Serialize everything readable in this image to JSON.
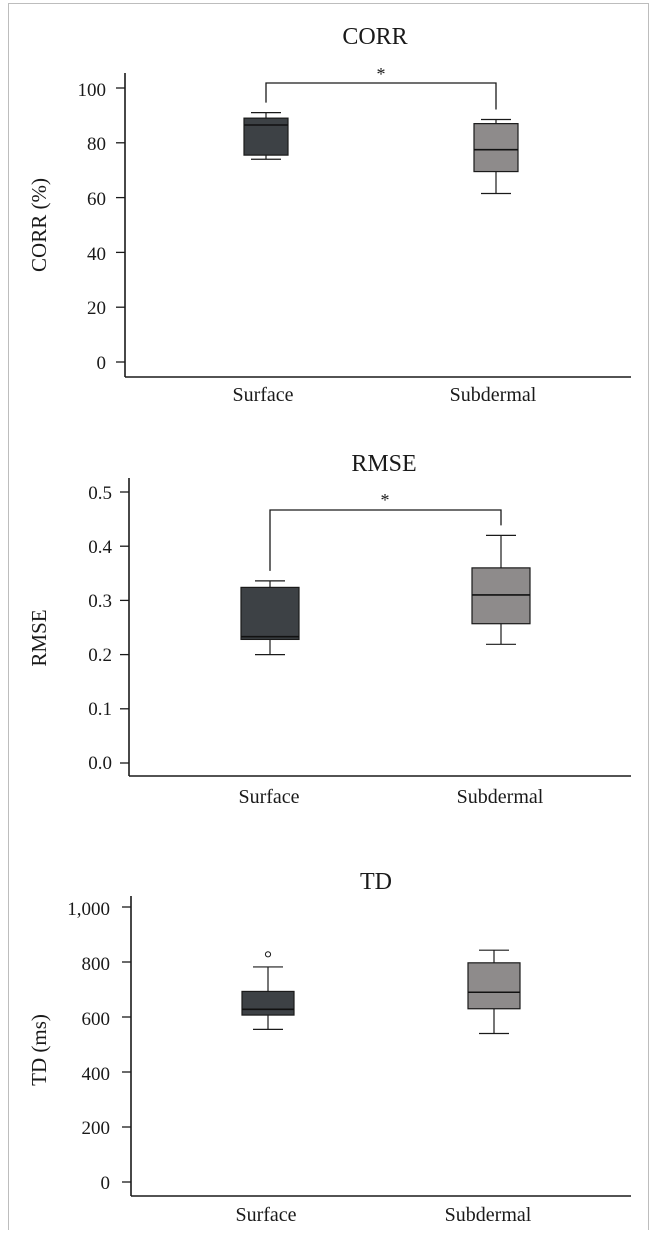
{
  "chart_data": [
    {
      "type": "box",
      "title": "CORR",
      "ylabel": "CORR (%)",
      "xlabel": "",
      "ylim": [
        0,
        100
      ],
      "yticks": [
        0,
        20,
        40,
        60,
        80,
        100
      ],
      "ytick_labels": [
        "0",
        "20",
        "40",
        "60",
        "80",
        "100"
      ],
      "categories": [
        "Surface",
        "Subdermal"
      ],
      "boxes": [
        {
          "category": "Surface",
          "min": 74,
          "q1": 75.5,
          "median": 86.5,
          "q3": 89,
          "max": 91,
          "outliers": [],
          "color": "#3d4145"
        },
        {
          "category": "Subdermal",
          "min": 61.5,
          "q1": 69.5,
          "median": 77.5,
          "q3": 87,
          "max": 88.5,
          "outliers": [],
          "color": "#8e8b8b"
        }
      ],
      "significance": {
        "between": [
          "Surface",
          "Subdermal"
        ],
        "label": "*",
        "level": 102
      }
    },
    {
      "type": "box",
      "title": "RMSE",
      "ylabel": "RMSE",
      "xlabel": "",
      "ylim": [
        0,
        0.52
      ],
      "yticks": [
        0,
        0.1,
        0.2,
        0.3,
        0.4,
        0.5
      ],
      "ytick_labels": [
        "0.0",
        "0.1",
        "0.2",
        "0.3",
        "0.4",
        "0.5"
      ],
      "categories": [
        "Surface",
        "Subdermal"
      ],
      "boxes": [
        {
          "category": "Surface",
          "min": 0.2,
          "q1": 0.228,
          "median": 0.233,
          "q3": 0.324,
          "max": 0.336,
          "outliers": [],
          "color": "#3d4145"
        },
        {
          "category": "Subdermal",
          "min": 0.219,
          "q1": 0.257,
          "median": 0.31,
          "q3": 0.36,
          "max": 0.42,
          "outliers": [],
          "color": "#8e8b8b"
        }
      ],
      "significance": {
        "between": [
          "Surface",
          "Subdermal"
        ],
        "label": "*",
        "level": 0.465
      }
    },
    {
      "type": "box",
      "title": "TD",
      "ylabel": "TD (ms)",
      "xlabel": "",
      "ylim": [
        0,
        1050
      ],
      "yticks": [
        0,
        200,
        400,
        600,
        800,
        1000
      ],
      "ytick_labels": [
        "0",
        "200",
        "400",
        "600",
        "800",
        "1,000"
      ],
      "categories": [
        "Surface",
        "Subdermal"
      ],
      "boxes": [
        {
          "category": "Surface",
          "min": 555,
          "q1": 607,
          "median": 628,
          "q3": 693,
          "max": 782,
          "outliers": [
            828
          ],
          "color": "#3d4145"
        },
        {
          "category": "Subdermal",
          "min": 540,
          "q1": 630,
          "median": 690,
          "q3": 797,
          "max": 843,
          "outliers": [],
          "color": "#8e8b8b"
        }
      ],
      "significance": null
    }
  ]
}
